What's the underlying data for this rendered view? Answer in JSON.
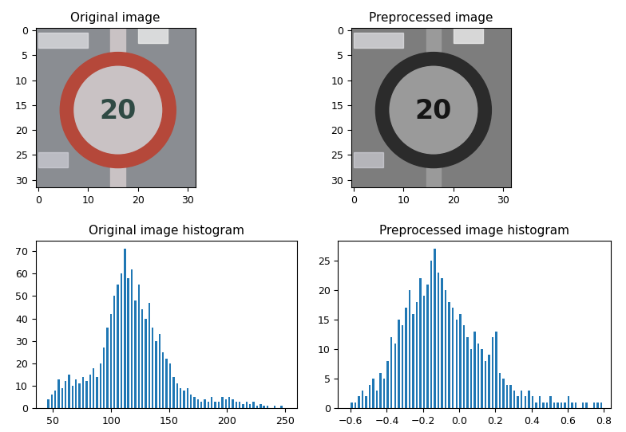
{
  "chart_data": [
    {
      "type": "image",
      "title": "Original image",
      "xlim": [
        -0.5,
        31.5
      ],
      "ylim": [
        31.5,
        -0.5
      ],
      "xticks": [
        0,
        10,
        20,
        30
      ],
      "yticks": [
        0,
        5,
        10,
        15,
        20,
        25,
        30
      ],
      "sign_text": "20",
      "colors": [
        "#8a8d92",
        "#b5483a",
        "#c9c2c4",
        "#2f4a44"
      ]
    },
    {
      "type": "image",
      "title": "Preprocessed image",
      "xlim": [
        -0.5,
        31.5
      ],
      "ylim": [
        31.5,
        -0.5
      ],
      "xticks": [
        0,
        10,
        20,
        30
      ],
      "yticks": [
        0,
        5,
        10,
        15,
        20,
        25,
        30
      ],
      "sign_text": "20",
      "colors": [
        "#7d7d7d",
        "#2b2b2b",
        "#9a9a9a",
        "#151515"
      ]
    },
    {
      "type": "histogram",
      "title": "Original image histogram",
      "color": "#1f77b4",
      "xlim": [
        35,
        260
      ],
      "ylim": [
        0,
        74.5
      ],
      "xticks": [
        50,
        100,
        150,
        200,
        250
      ],
      "yticks": [
        0,
        10,
        20,
        30,
        40,
        50,
        60,
        70
      ],
      "bins": [
        45,
        48,
        51,
        54,
        57,
        60,
        63,
        66,
        69,
        72,
        75,
        78,
        81,
        84,
        87,
        90,
        93,
        96,
        99,
        102,
        105,
        108,
        111,
        114,
        117,
        120,
        123,
        126,
        129,
        132,
        135,
        138,
        141,
        144,
        147,
        150,
        153,
        156,
        159,
        162,
        165,
        168,
        171,
        174,
        177,
        180,
        183,
        186,
        189,
        192,
        195,
        198,
        201,
        204,
        207,
        210,
        213,
        216,
        219,
        222,
        225,
        228,
        231,
        234,
        237,
        240,
        243,
        246,
        249
      ],
      "values": [
        4,
        6,
        8,
        13,
        9,
        12,
        15,
        10,
        13,
        11,
        14,
        12,
        15,
        18,
        14,
        20,
        27,
        36,
        42,
        50,
        55,
        60,
        71,
        58,
        62,
        48,
        55,
        44,
        40,
        47,
        36,
        30,
        33,
        25,
        22,
        20,
        14,
        11,
        9,
        8,
        9,
        6,
        5,
        4,
        3,
        4,
        3,
        5,
        3,
        3,
        5,
        4,
        5,
        4,
        3,
        3,
        2,
        3,
        2,
        3,
        1,
        2,
        1,
        1,
        0,
        1,
        0,
        1
      ]
    },
    {
      "type": "histogram",
      "title": "Preprocessed image histogram",
      "color": "#1f77b4",
      "xlim": [
        -0.67,
        0.84
      ],
      "ylim": [
        0,
        28.3
      ],
      "xticks": [
        {
          "value": -0.6,
          "label": "−0.6"
        },
        {
          "value": -0.4,
          "label": "−0.4"
        },
        {
          "value": -0.2,
          "label": "−0.2"
        },
        0.0,
        0.2,
        0.4,
        0.6,
        0.8
      ],
      "yticks": [
        0,
        5,
        10,
        15,
        20,
        25
      ],
      "bins": [
        -0.6,
        -0.58,
        -0.56,
        -0.54,
        -0.52,
        -0.5,
        -0.48,
        -0.46,
        -0.44,
        -0.42,
        -0.4,
        -0.38,
        -0.36,
        -0.34,
        -0.32,
        -0.3,
        -0.28,
        -0.26,
        -0.24,
        -0.22,
        -0.2,
        -0.18,
        -0.16,
        -0.14,
        -0.12,
        -0.1,
        -0.08,
        -0.06,
        -0.04,
        -0.02,
        0.0,
        0.02,
        0.04,
        0.06,
        0.08,
        0.1,
        0.12,
        0.14,
        0.16,
        0.18,
        0.2,
        0.22,
        0.24,
        0.26,
        0.28,
        0.3,
        0.32,
        0.34,
        0.36,
        0.38,
        0.4,
        0.42,
        0.44,
        0.46,
        0.48,
        0.5,
        0.52,
        0.54,
        0.56,
        0.58,
        0.6,
        0.62,
        0.64,
        0.66,
        0.68,
        0.7,
        0.72,
        0.74,
        0.76,
        0.78,
        0.8
      ],
      "values": [
        1,
        1,
        2,
        3,
        2,
        4,
        5,
        3,
        6,
        5,
        8,
        12,
        11,
        15,
        14,
        17,
        20,
        16,
        18,
        22,
        19,
        21,
        25,
        27,
        23,
        22,
        20,
        18,
        17,
        15,
        16,
        14,
        12,
        10,
        13,
        11,
        10,
        8,
        9,
        12,
        13,
        6,
        5,
        4,
        4,
        3,
        2,
        3,
        2,
        3,
        2,
        1,
        2,
        1,
        1,
        2,
        1,
        1,
        1,
        1,
        2,
        1,
        1,
        0,
        1,
        1,
        0,
        1,
        1,
        1
      ]
    }
  ]
}
